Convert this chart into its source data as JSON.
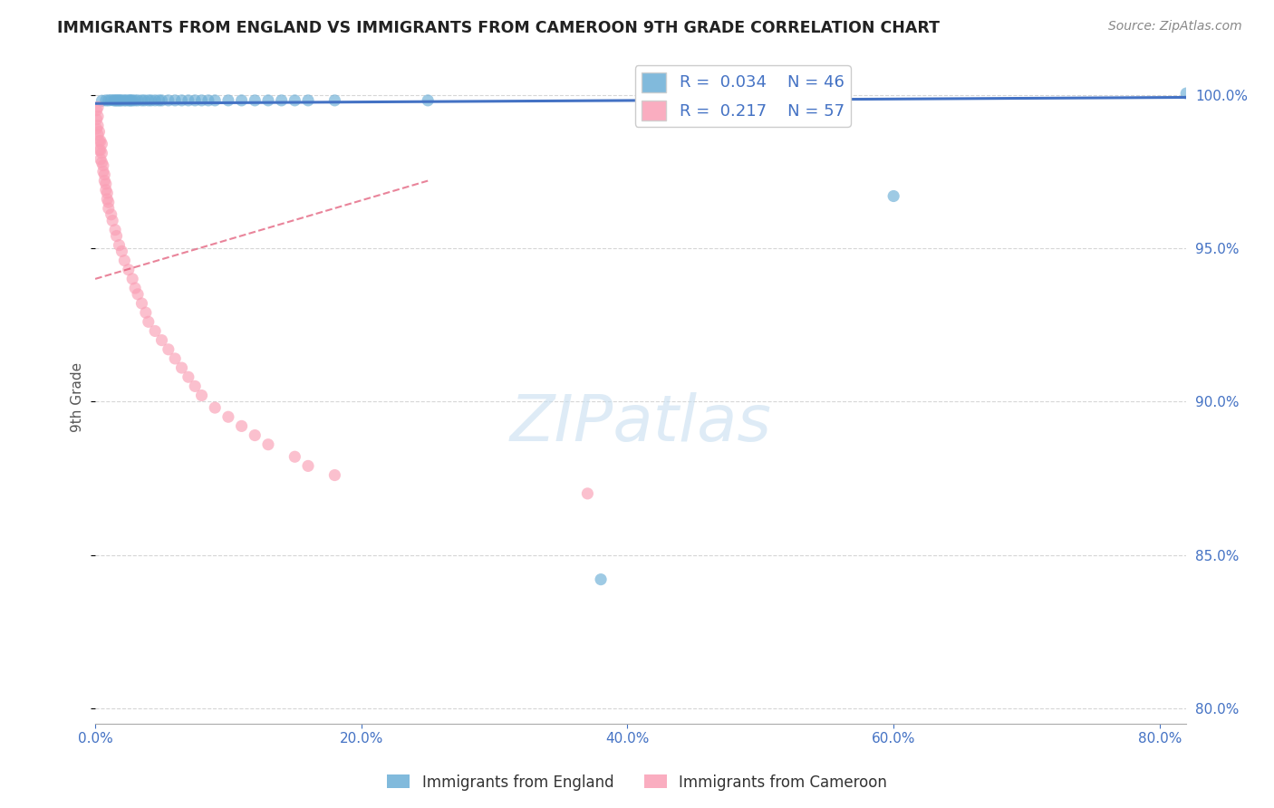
{
  "title": "IMMIGRANTS FROM ENGLAND VS IMMIGRANTS FROM CAMEROON 9TH GRADE CORRELATION CHART",
  "source": "Source: ZipAtlas.com",
  "ylabel_label": "9th Grade",
  "legend_england": "Immigrants from England",
  "legend_cameroon": "Immigrants from Cameroon",
  "R_england": "0.034",
  "N_england": "46",
  "R_cameroon": "0.217",
  "N_cameroon": "57",
  "color_england": "#6baed6",
  "color_cameroon": "#fa9fb5",
  "trendline_england": "#4472c4",
  "trendline_cameroon": "#e05070",
  "watermark_color": "#c8dff0",
  "grid_color": "#cccccc",
  "title_color": "#222222",
  "tick_color": "#4472c4",
  "background_color": "#ffffff",
  "xlim": [
    0.0,
    0.82
  ],
  "ylim": [
    0.795,
    1.008
  ],
  "xticks": [
    0.0,
    0.2,
    0.4,
    0.6,
    0.8
  ],
  "xticklabels": [
    "0.0%",
    "20.0%",
    "40.0%",
    "60.0%",
    "80.0%"
  ],
  "yticks": [
    0.8,
    0.85,
    0.9,
    0.95,
    1.0
  ],
  "yticklabels": [
    "80.0%",
    "85.0%",
    "90.0%",
    "95.0%",
    "100.0%"
  ],
  "england_x": [
    0.005,
    0.008,
    0.01,
    0.012,
    0.014,
    0.015,
    0.016,
    0.017,
    0.018,
    0.019,
    0.02,
    0.022,
    0.023,
    0.025,
    0.026,
    0.027,
    0.028,
    0.03,
    0.032,
    0.035,
    0.037,
    0.04,
    0.042,
    0.045,
    0.048,
    0.05,
    0.055,
    0.06,
    0.065,
    0.07,
    0.075,
    0.08,
    0.085,
    0.09,
    0.1,
    0.11,
    0.12,
    0.13,
    0.14,
    0.15,
    0.16,
    0.18,
    0.25,
    0.6,
    0.38,
    0.82
  ],
  "england_y": [
    0.9981,
    0.9982,
    0.9982,
    0.9983,
    0.9982,
    0.9982,
    0.9982,
    0.9982,
    0.9982,
    0.9982,
    0.9982,
    0.9982,
    0.9982,
    0.9982,
    0.9982,
    0.9982,
    0.9982,
    0.9982,
    0.9982,
    0.9982,
    0.9982,
    0.9982,
    0.9982,
    0.9982,
    0.9982,
    0.9982,
    0.9982,
    0.9982,
    0.9982,
    0.9982,
    0.9982,
    0.9982,
    0.9982,
    0.9982,
    0.9982,
    0.9982,
    0.9982,
    0.9982,
    0.9982,
    0.9982,
    0.9982,
    0.9982,
    0.9982,
    0.967,
    0.842,
    1.0005
  ],
  "cameroon_x": [
    0.001,
    0.001,
    0.001,
    0.002,
    0.002,
    0.002,
    0.002,
    0.003,
    0.003,
    0.003,
    0.004,
    0.004,
    0.004,
    0.005,
    0.005,
    0.005,
    0.006,
    0.006,
    0.007,
    0.007,
    0.008,
    0.008,
    0.009,
    0.009,
    0.01,
    0.01,
    0.012,
    0.013,
    0.015,
    0.016,
    0.018,
    0.02,
    0.022,
    0.025,
    0.028,
    0.03,
    0.032,
    0.035,
    0.038,
    0.04,
    0.045,
    0.05,
    0.055,
    0.06,
    0.065,
    0.07,
    0.075,
    0.08,
    0.09,
    0.1,
    0.11,
    0.12,
    0.13,
    0.15,
    0.16,
    0.18,
    0.37
  ],
  "cameroon_y": [
    0.995,
    0.992,
    0.989,
    0.996,
    0.993,
    0.99,
    0.987,
    0.988,
    0.985,
    0.982,
    0.985,
    0.982,
    0.979,
    0.984,
    0.981,
    0.978,
    0.977,
    0.975,
    0.974,
    0.972,
    0.971,
    0.969,
    0.968,
    0.966,
    0.965,
    0.963,
    0.961,
    0.959,
    0.956,
    0.954,
    0.951,
    0.949,
    0.946,
    0.943,
    0.94,
    0.937,
    0.935,
    0.932,
    0.929,
    0.926,
    0.923,
    0.92,
    0.917,
    0.914,
    0.911,
    0.908,
    0.905,
    0.902,
    0.898,
    0.895,
    0.892,
    0.889,
    0.886,
    0.882,
    0.879,
    0.876,
    0.87
  ]
}
